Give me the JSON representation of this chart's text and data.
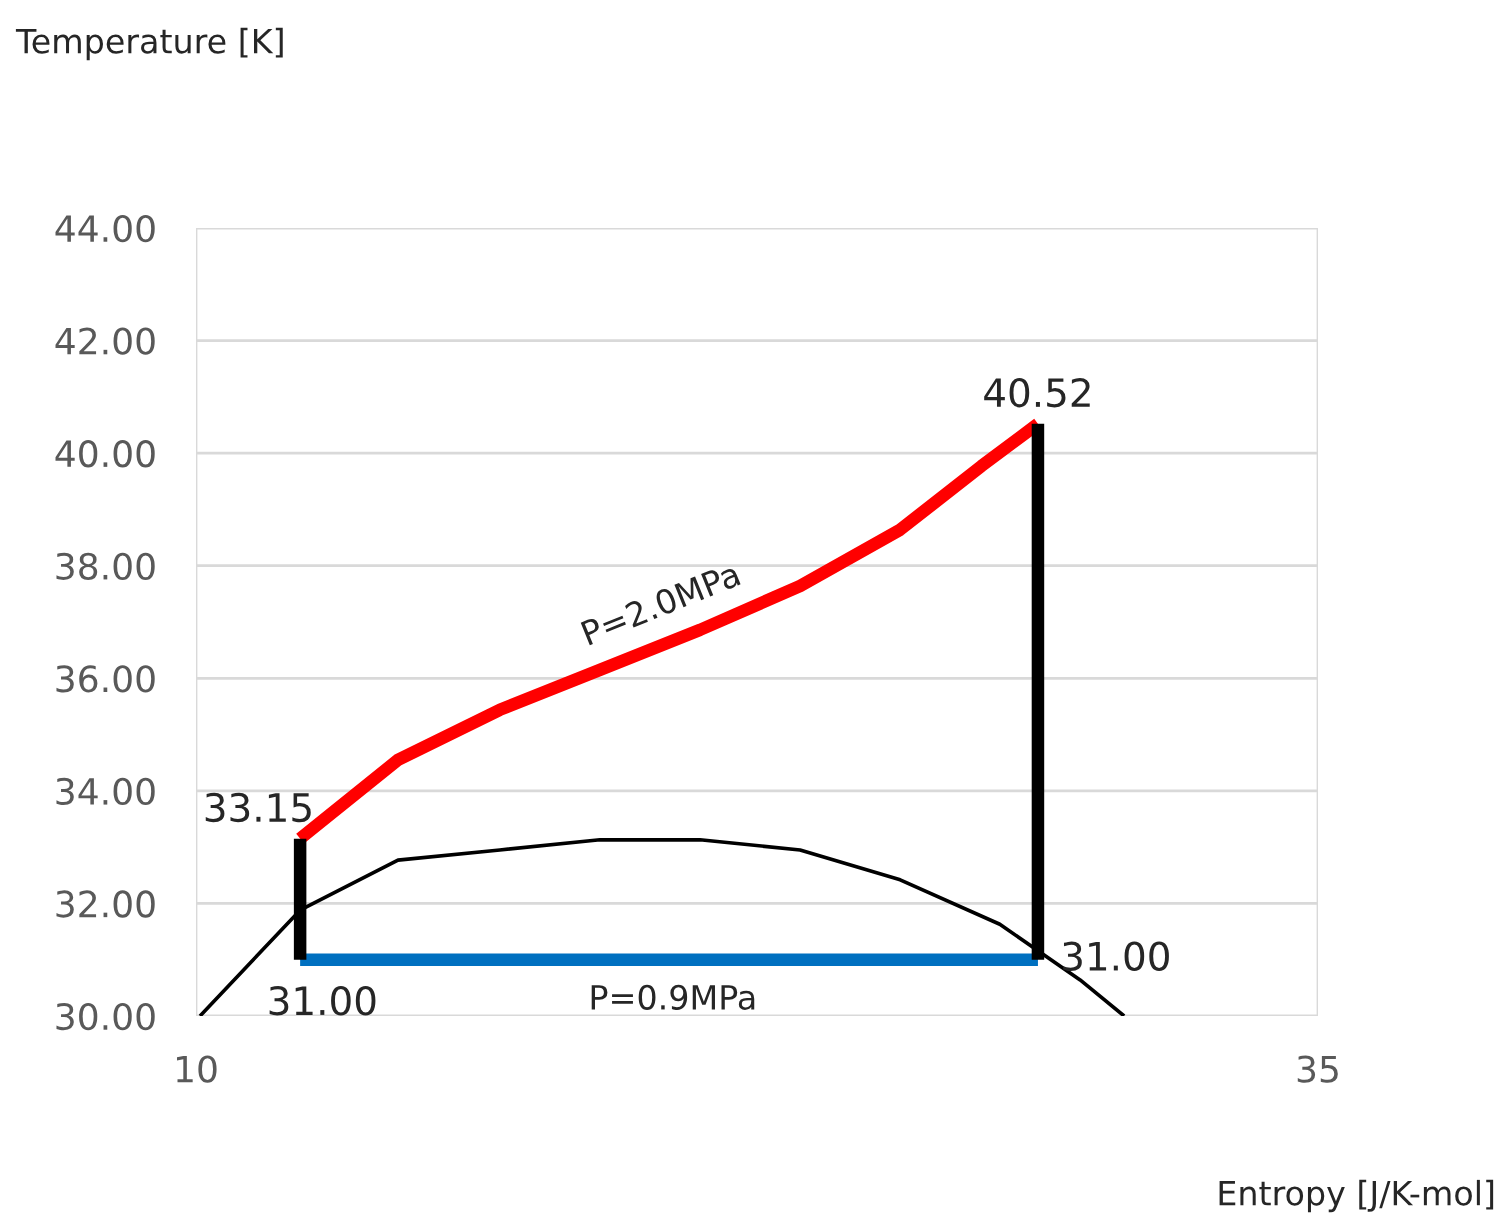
{
  "chart_data": {
    "type": "line",
    "xlabel": "Entropy [J/K-mol]",
    "ylabel": "Temperature [K]",
    "xlim": [
      10,
      35
    ],
    "xticks": [
      10,
      35
    ],
    "ylim": [
      30,
      44
    ],
    "yticks": [
      {
        "value": 30,
        "label": "30.00"
      },
      {
        "value": 32,
        "label": "32.00"
      },
      {
        "value": 34,
        "label": "34.00"
      },
      {
        "value": 36,
        "label": "36.00"
      },
      {
        "value": 38,
        "label": "38.00"
      },
      {
        "value": 40,
        "label": "40.00"
      },
      {
        "value": 42,
        "label": "42.00"
      },
      {
        "value": 44,
        "label": "44.00"
      }
    ],
    "grid": true,
    "series": [
      {
        "color": "#ff0000",
        "x": [
          12.32,
          14.5,
          16.77,
          19.0,
          21.23,
          23.46,
          25.69,
          27.5,
          28.76
        ],
        "values": [
          33.15,
          34.55,
          35.44,
          36.15,
          36.86,
          37.64,
          38.64,
          39.77,
          40.52
        ],
        "value_labels": [
          "33.15",
          null,
          null,
          null,
          null,
          null,
          null,
          null,
          "40.52"
        ]
      },
      {
        "color": "#0070c0",
        "x": [
          12.32,
          28.76
        ],
        "values": [
          31.0,
          31.0
        ],
        "value_labels": [
          "31.00",
          "31.00"
        ]
      },
      {
        "color": "#000000",
        "x": [
          12.32,
          12.32
        ],
        "values": [
          31.0,
          33.15
        ]
      },
      {
        "color": "#000000",
        "x": [
          28.76,
          28.76
        ],
        "values": [
          31.0,
          40.52
        ]
      },
      {
        "color": "#000000",
        "x": [
          10.09,
          12.32,
          14.5,
          16.77,
          19.0,
          21.23,
          23.46,
          25.69,
          27.91,
          29.7,
          30.68
        ],
        "values": [
          30.0,
          31.88,
          32.77,
          32.95,
          33.13,
          33.13,
          32.95,
          32.42,
          31.63,
          30.64,
          30.0
        ]
      }
    ],
    "annotations": [
      "P=2.0MPa",
      "P=0.9MPa"
    ]
  }
}
